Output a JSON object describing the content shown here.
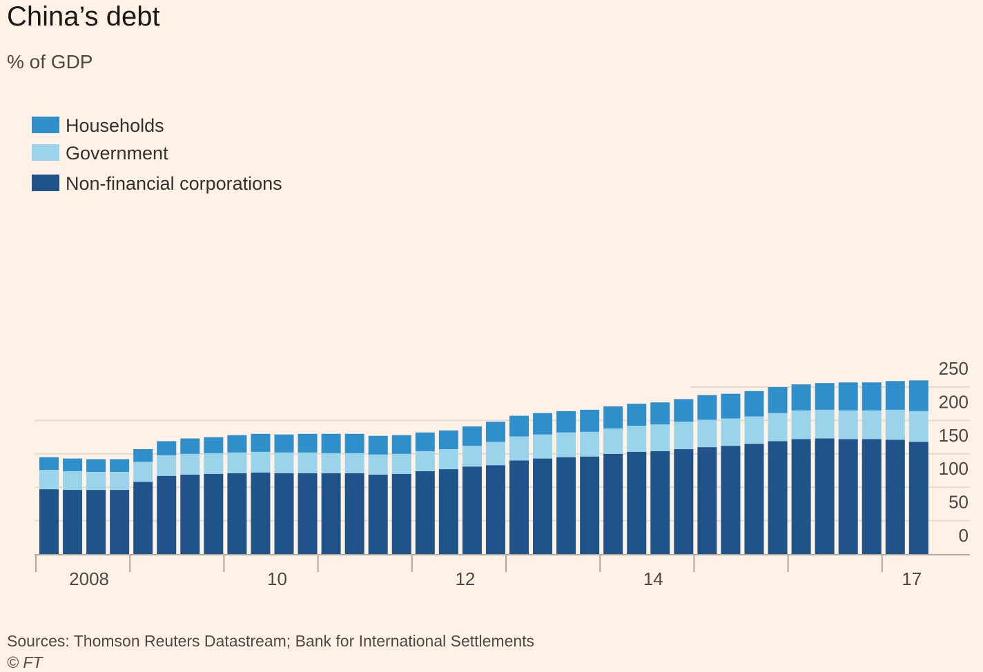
{
  "title": "China’s debt",
  "subtitle": "% of GDP",
  "source": "Sources: Thomson Reuters Datastream; Bank for International Settlements",
  "copyright": "© FT",
  "chart_data": {
    "type": "bar",
    "stacked": true,
    "title": "China’s debt",
    "subtitle": "% of GDP",
    "ylim": [
      0,
      250
    ],
    "y_ticks": [
      "0",
      "50",
      "100",
      "150",
      "200",
      "250"
    ],
    "y_axis_side": "right",
    "grid": true,
    "legend_placement": "top-left",
    "x_tick_labels": [
      {
        "label": "2008",
        "bar_index": 2
      },
      {
        "label": "10",
        "bar_index": 10
      },
      {
        "label": "12",
        "bar_index": 18
      },
      {
        "label": "14",
        "bar_index": 26
      },
      {
        "label": "17",
        "bar_index": 37
      }
    ],
    "colors": {
      "Households": "#2e8fcb",
      "Government": "#9ad3ea",
      "Non-financial corporations": "#1f5389"
    },
    "series": [
      {
        "name": "Non-financial corporations",
        "values": [
          97,
          96,
          96,
          96,
          108,
          117,
          119,
          120,
          121,
          122,
          121,
          121,
          121,
          121,
          119,
          120,
          124,
          127,
          131,
          133,
          140,
          143,
          145,
          146,
          150,
          153,
          154,
          157,
          160,
          162,
          165,
          169,
          172,
          173,
          172,
          172,
          171,
          168
        ]
      },
      {
        "name": "Government",
        "values": [
          29,
          28,
          27,
          27,
          30,
          31,
          31,
          31,
          31,
          31,
          31,
          31,
          30,
          30,
          30,
          30,
          30,
          30,
          31,
          35,
          36,
          36,
          37,
          37,
          38,
          39,
          40,
          41,
          41,
          41,
          41,
          42,
          43,
          43,
          43,
          43,
          45,
          46
        ]
      },
      {
        "name": "Households",
        "values": [
          19,
          19,
          19,
          19,
          19,
          21,
          23,
          24,
          26,
          27,
          27,
          28,
          29,
          29,
          28,
          28,
          28,
          28,
          29,
          30,
          31,
          32,
          32,
          33,
          33,
          33,
          33,
          34,
          37,
          37,
          38,
          39,
          39,
          40,
          42,
          42,
          43,
          46
        ]
      }
    ]
  }
}
